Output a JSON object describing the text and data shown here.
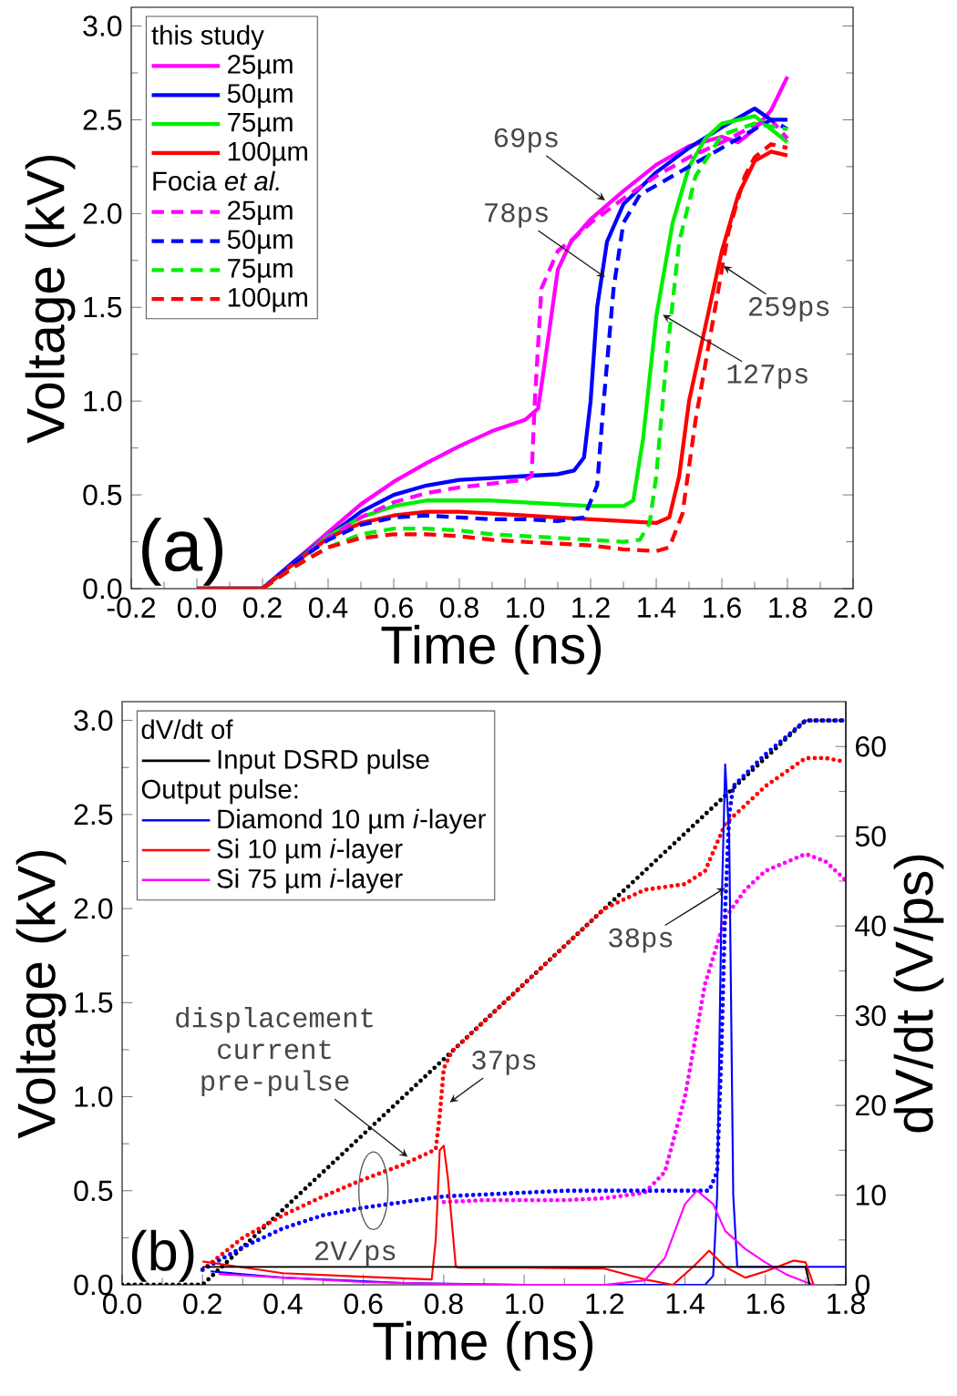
{
  "chart_data": [
    {
      "type": "line",
      "xlabel": "Time (ns)",
      "ylabel": "Voltage (kV)",
      "xlim": [
        -0.2,
        2.0
      ],
      "ylim": [
        0,
        3.1
      ],
      "xticks": [
        -0.2,
        {
          "value": 0,
          "label": "0.0"
        },
        0.2,
        0.4,
        0.6,
        0.8,
        {
          "value": 1,
          "label": "1.0"
        },
        1.2,
        1.4,
        1.6,
        1.8,
        {
          "value": 2,
          "label": "2.0"
        }
      ],
      "yticks": [
        {
          "value": 0,
          "label": "0.0"
        },
        0.5,
        {
          "value": 1,
          "label": "1.0"
        },
        1.5,
        {
          "value": 2,
          "label": "2.0"
        },
        2.5,
        {
          "value": 3,
          "label": "3.0"
        }
      ],
      "legend": "top left",
      "series": [
        {
          "name": "25µm",
          "color": "#ff00ff",
          "line_style": "solid",
          "x": [
            0.0,
            0.2,
            0.3,
            0.4,
            0.5,
            0.6,
            0.7,
            0.8,
            0.9,
            1.0,
            1.04,
            1.06,
            1.1,
            1.14,
            1.2,
            1.3,
            1.4,
            1.5,
            1.6,
            1.65,
            1.7,
            1.75,
            1.8
          ],
          "values": [
            0,
            0,
            0.15,
            0.3,
            0.45,
            0.57,
            0.67,
            0.76,
            0.84,
            0.9,
            0.96,
            1.2,
            1.7,
            1.85,
            1.97,
            2.12,
            2.26,
            2.36,
            2.41,
            2.38,
            2.45,
            2.55,
            2.73
          ]
        },
        {
          "name": "50µm",
          "color": "#0000ff",
          "line_style": "solid",
          "x": [
            0.0,
            0.2,
            0.3,
            0.4,
            0.5,
            0.6,
            0.7,
            0.8,
            0.9,
            1.0,
            1.1,
            1.15,
            1.18,
            1.2,
            1.22,
            1.25,
            1.3,
            1.4,
            1.5,
            1.6,
            1.7,
            1.75,
            1.8
          ],
          "values": [
            0,
            0,
            0.15,
            0.28,
            0.41,
            0.5,
            0.55,
            0.58,
            0.59,
            0.6,
            0.61,
            0.63,
            0.7,
            1.0,
            1.5,
            1.85,
            2.05,
            2.22,
            2.35,
            2.46,
            2.56,
            2.5,
            2.5
          ]
        },
        {
          "name": "75µm",
          "color": "#00ee00",
          "line_style": "solid",
          "x": [
            0.0,
            0.2,
            0.3,
            0.4,
            0.5,
            0.6,
            0.7,
            0.8,
            0.9,
            1.0,
            1.1,
            1.2,
            1.3,
            1.33,
            1.36,
            1.4,
            1.45,
            1.5,
            1.55,
            1.6,
            1.7,
            1.75,
            1.8
          ],
          "values": [
            0,
            0,
            0.14,
            0.28,
            0.38,
            0.44,
            0.47,
            0.47,
            0.47,
            0.46,
            0.45,
            0.44,
            0.44,
            0.47,
            0.8,
            1.45,
            1.95,
            2.25,
            2.4,
            2.48,
            2.52,
            2.45,
            2.38
          ]
        },
        {
          "name": "100µm",
          "color": "#ff0000",
          "line_style": "solid",
          "x": [
            0.0,
            0.2,
            0.3,
            0.4,
            0.5,
            0.6,
            0.7,
            0.8,
            0.9,
            1.0,
            1.1,
            1.2,
            1.3,
            1.4,
            1.44,
            1.47,
            1.5,
            1.55,
            1.6,
            1.65,
            1.7,
            1.75,
            1.8
          ],
          "values": [
            0,
            0,
            0.14,
            0.27,
            0.35,
            0.39,
            0.41,
            0.41,
            0.4,
            0.39,
            0.38,
            0.37,
            0.36,
            0.35,
            0.38,
            0.6,
            1.0,
            1.4,
            1.8,
            2.1,
            2.28,
            2.33,
            2.31
          ]
        },
        {
          "name": "25µm",
          "color": "#ff00ff",
          "line_style": "dashed",
          "x": [
            0.2,
            0.3,
            0.4,
            0.5,
            0.6,
            0.7,
            0.8,
            0.9,
            1.0,
            1.02,
            1.03,
            1.05,
            1.1,
            1.15,
            1.2,
            1.3,
            1.4,
            1.5,
            1.6,
            1.7,
            1.75,
            1.8
          ],
          "values": [
            0,
            0.14,
            0.27,
            0.38,
            0.46,
            0.51,
            0.54,
            0.56,
            0.58,
            0.6,
            1.0,
            1.6,
            1.8,
            1.87,
            1.95,
            2.08,
            2.2,
            2.3,
            2.38,
            2.47,
            2.5,
            2.4
          ]
        },
        {
          "name": "50µm",
          "color": "#0000ff",
          "line_style": "dashed",
          "x": [
            0.2,
            0.3,
            0.4,
            0.5,
            0.6,
            0.7,
            0.8,
            0.9,
            1.0,
            1.1,
            1.18,
            1.22,
            1.24,
            1.27,
            1.3,
            1.35,
            1.4,
            1.5,
            1.6,
            1.7,
            1.75,
            1.8
          ],
          "values": [
            0,
            0.14,
            0.26,
            0.34,
            0.38,
            0.39,
            0.38,
            0.37,
            0.37,
            0.36,
            0.38,
            0.55,
            1.0,
            1.6,
            1.95,
            2.1,
            2.15,
            2.25,
            2.35,
            2.45,
            2.5,
            2.45
          ]
        },
        {
          "name": "75µm",
          "color": "#00ee00",
          "line_style": "dashed",
          "x": [
            0.2,
            0.3,
            0.4,
            0.5,
            0.6,
            0.7,
            0.8,
            0.9,
            1.0,
            1.1,
            1.2,
            1.3,
            1.35,
            1.38,
            1.4,
            1.43,
            1.47,
            1.52,
            1.6,
            1.7,
            1.8
          ],
          "values": [
            0,
            0.12,
            0.22,
            0.29,
            0.32,
            0.32,
            0.31,
            0.29,
            0.28,
            0.27,
            0.26,
            0.25,
            0.26,
            0.35,
            0.6,
            1.2,
            1.85,
            2.2,
            2.42,
            2.48,
            2.45
          ]
        },
        {
          "name": "100µm",
          "color": "#ff0000",
          "line_style": "dashed",
          "x": [
            0.2,
            0.3,
            0.4,
            0.5,
            0.6,
            0.7,
            0.8,
            0.9,
            1.0,
            1.1,
            1.2,
            1.3,
            1.4,
            1.44,
            1.48,
            1.52,
            1.57,
            1.62,
            1.67,
            1.7,
            1.75,
            1.8
          ],
          "values": [
            0,
            0.12,
            0.22,
            0.27,
            0.29,
            0.29,
            0.28,
            0.26,
            0.25,
            0.24,
            0.23,
            0.21,
            0.2,
            0.22,
            0.4,
            0.9,
            1.4,
            1.9,
            2.2,
            2.3,
            2.37,
            2.35
          ]
        }
      ],
      "annotations": [
        "(a)",
        "this study",
        "Focia *et al.*",
        {
          "text": "69ps",
          "x": 1.244,
          "y": 2.07
        },
        {
          "text": "78ps",
          "x": 1.244,
          "y": 1.66
        },
        {
          "text": "259ps",
          "x": 1.605,
          "y": 1.72
        },
        {
          "text": "127ps",
          "x": 1.42,
          "y": 1.46
        }
      ]
    },
    {
      "type": "line",
      "xlabel": "Time (ns)",
      "ylabel": "Voltage (kV)",
      "y2label": "dV/dt (V/ps)",
      "xlim": [
        0,
        1.8
      ],
      "ylim": [
        0,
        3.1
      ],
      "y2lim": [
        0,
        65
      ],
      "xticks": [
        {
          "value": 0,
          "label": "0.0"
        },
        0.2,
        0.4,
        0.6,
        0.8,
        {
          "value": 1,
          "label": "1.0"
        },
        1.2,
        1.4,
        1.6,
        1.8
      ],
      "yticks": [
        {
          "value": 0,
          "label": "0.0"
        },
        0.5,
        {
          "value": 1,
          "label": "1.0"
        },
        1.5,
        {
          "value": 2,
          "label": "2.0"
        },
        2.5,
        {
          "value": 3,
          "label": "3.0"
        }
      ],
      "y2ticks": [
        0,
        10,
        20,
        30,
        40,
        50,
        60
      ],
      "legend": "top left",
      "series": [
        {
          "color": "#000000",
          "line_style": "dotted",
          "x": [
            0.0,
            0.2,
            1.7,
            1.8
          ],
          "values": [
            0,
            0,
            3.0,
            3.0
          ]
        },
        {
          "color": "#ff0000",
          "line_style": "dotted",
          "x": [
            0.2,
            0.3,
            0.4,
            0.5,
            0.6,
            0.7,
            0.78,
            0.79,
            0.8,
            0.82,
            1.0,
            1.1,
            1.2,
            1.3,
            1.4,
            1.45,
            1.5,
            1.55,
            1.6,
            1.7,
            1.75,
            1.8
          ],
          "values": [
            0.08,
            0.25,
            0.37,
            0.47,
            0.56,
            0.64,
            0.72,
            0.9,
            1.15,
            1.24,
            1.6,
            1.8,
            2.0,
            2.1,
            2.13,
            2.2,
            2.45,
            2.55,
            2.65,
            2.8,
            2.8,
            2.78
          ]
        },
        {
          "color": "#ff00ff",
          "line_style": "dotted",
          "x": [
            0.8,
            0.9,
            1.0,
            1.1,
            1.2,
            1.3,
            1.35,
            1.4,
            1.45,
            1.5,
            1.55,
            1.6,
            1.7,
            1.75,
            1.8
          ],
          "values": [
            0.44,
            0.45,
            0.45,
            0.45,
            0.46,
            0.49,
            0.6,
            1.0,
            1.6,
            1.95,
            2.1,
            2.2,
            2.29,
            2.25,
            2.15
          ]
        },
        {
          "color": "#0000ff",
          "line_style": "dotted",
          "x": [
            0.2,
            0.3,
            0.4,
            0.5,
            0.6,
            0.7,
            0.8,
            0.9,
            1.0,
            1.1,
            1.2,
            1.3,
            1.4,
            1.46,
            1.48,
            1.49,
            1.5,
            1.51,
            1.52,
            1.6,
            1.7,
            1.8
          ],
          "values": [
            0.08,
            0.2,
            0.3,
            0.37,
            0.41,
            0.44,
            0.47,
            0.48,
            0.49,
            0.5,
            0.5,
            0.5,
            0.5,
            0.5,
            0.6,
            1.2,
            2.0,
            2.5,
            2.65,
            2.82,
            3.0,
            3.0
          ]
        },
        {
          "name": "Diamond 10 µm *i*-layer",
          "color": "#0000ff",
          "line_style": "solid",
          "axis": "y2",
          "x": [
            0.22,
            0.4,
            0.7,
            1.0,
            1.45,
            1.47,
            1.48,
            1.49,
            1.5,
            1.51,
            1.52,
            1.53,
            1.8
          ],
          "values": [
            1.5,
            0.8,
            0.2,
            0,
            0,
            1,
            10,
            40,
            58,
            50,
            10,
            2,
            2
          ]
        },
        {
          "name": "Si 10 µm *i*-layer",
          "color": "#ff0000",
          "line_style": "solid",
          "axis": "y2",
          "x": [
            0.2,
            0.4,
            0.6,
            0.77,
            0.78,
            0.79,
            0.8,
            0.81,
            0.83,
            0.84,
            1.0,
            1.2,
            1.3,
            1.37,
            1.42,
            1.46,
            1.5,
            1.55,
            1.6,
            1.67,
            1.7,
            1.72
          ],
          "values": [
            2.6,
            1.3,
            0.9,
            0.6,
            5,
            15,
            15.5,
            12,
            2,
            1.9,
            1.9,
            1.8,
            0.6,
            0,
            2,
            3.8,
            2,
            0.8,
            1.5,
            2.7,
            2.5,
            0
          ]
        },
        {
          "name": "Si 75 µm *i*-layer",
          "color": "#ff00ff",
          "line_style": "solid",
          "axis": "y2",
          "x": [
            0.24,
            0.4,
            0.6,
            0.8,
            1.0,
            1.2,
            1.3,
            1.35,
            1.4,
            1.43,
            1.47,
            1.5,
            1.55,
            1.6,
            1.65,
            1.7,
            1.72
          ],
          "values": [
            1.2,
            0.8,
            0.3,
            0.1,
            0,
            0,
            0.5,
            3,
            9,
            10.5,
            9,
            6,
            4,
            2.5,
            1.2,
            0.3,
            0
          ]
        },
        {
          "name": "Input DSRD pulse",
          "color": "#000000",
          "line_style": "solid",
          "axis": "y2",
          "x": [
            0.2,
            1.7,
            1.71
          ],
          "values": [
            2,
            2,
            0
          ]
        }
      ],
      "annotations": [
        "(b)",
        "2V/ps",
        "dV/dt of",
        "Output pulse:",
        {
          "text": "displacement current pre-pulse",
          "x": 0.71,
          "y": 0.68
        },
        {
          "text": "37ps",
          "x": 0.815,
          "y": 0.97
        },
        {
          "text": "38ps",
          "x": 1.5,
          "y": 2.11
        }
      ]
    }
  ]
}
